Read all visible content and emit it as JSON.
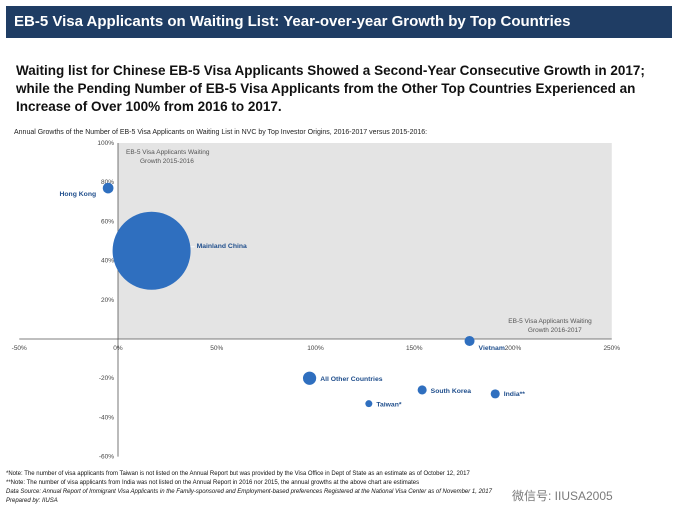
{
  "banner": {
    "title": "EB-5 Visa Applicants on Waiting List: Year-over-year Growth by Top Countries"
  },
  "headline": "Waiting list for Chinese EB-5 Visa Applicants Showed a Second-Year Consecutive Growth in 2017; while the Pending Number of EB-5 Visa Applicants from the Other Top Countries Experienced an Increase of Over 100% from 2016 to 2017.",
  "chart_data": {
    "type": "scatter",
    "title": "Annual Growths of the Number of EB-5 Visa Applicants on Waiting List in NVC by Top Investor Origins, 2016-2017 versus 2015-2016:",
    "ylabel": "EB-5 Visa Applicants Waiting Growth 2015-2016",
    "xlabel": "EB-5 Visa Applicants Waiting Growth 2016-2017",
    "xlim": [
      -50,
      250
    ],
    "ylim": [
      -60,
      100
    ],
    "x_ticks": [
      "-50%",
      "0%",
      "50%",
      "100%",
      "150%",
      "200%",
      "250%"
    ],
    "y_ticks": [
      "100%",
      "80%",
      "60%",
      "40%",
      "20%",
      "-20%",
      "-40%",
      "-60%"
    ],
    "grid": false,
    "points": [
      {
        "label": "Hong Kong",
        "x": -5,
        "y": 77,
        "size": 3
      },
      {
        "label": "Mainland China",
        "x": 17,
        "y": 45,
        "size": 100
      },
      {
        "label": "Vietnam",
        "x": 178,
        "y": -1,
        "size": 4
      },
      {
        "label": "All Other Countries",
        "x": 97,
        "y": -20,
        "size": 7
      },
      {
        "label": "South Korea",
        "x": 154,
        "y": -26,
        "size": 2
      },
      {
        "label": "India**",
        "x": 191,
        "y": -28,
        "size": 2
      },
      {
        "label": "Taiwan*",
        "x": 127,
        "y": -33,
        "size": 1
      }
    ],
    "colors": {
      "bubble": "#2f6fbf",
      "plot_bg": "#e4e4e4",
      "label": "#1f4e8c"
    }
  },
  "footnotes": [
    "*Note: The number of visa applicants from Taiwan is not listed on the Annual Report but was provided by the Visa Office in Dept of State as an estimate as of October 12, 2017",
    "**Note: The number of visa applicants from India was not listed on the Annual Report in 2016 nor 2015, the annual growths at the above chart are estimates",
    "Data Source: Annual Report of Immigrant Visa Applicants in the Family-sponsored and Employment-based preferences Registered at the National Visa Center as of November 1, 2017",
    "Prepared by: IIUSA"
  ],
  "watermark": "微信号: IIUSA2005"
}
